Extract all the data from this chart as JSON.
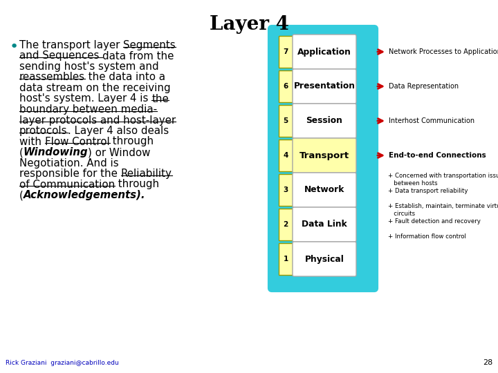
{
  "title": "Layer 4",
  "title_fontsize": 20,
  "title_fontweight": "bold",
  "bg_color": "#ffffff",
  "bullet_text_lines": [
    {
      "text": "The transport layer ",
      "style": "normal"
    },
    {
      "text": "Segments\nand Sequences ",
      "style": "underline"
    },
    {
      "text": "data from the\nsending host's system and\n",
      "style": "normal"
    },
    {
      "text": "reassembles",
      "style": "underline"
    },
    {
      "text": " the data into a\ndata stream on the receiving\nhost's system. Layer 4 is ",
      "style": "normal"
    },
    {
      "text": "the\nboundary between media-\nlayer protocols and host-layer\nprotocols",
      "style": "underline"
    },
    {
      "text": ". Layer 4 also deals\nwith ",
      "style": "normal"
    },
    {
      "text": "Flow Control",
      "style": "underline"
    },
    {
      "text": " through\n(",
      "style": "normal"
    },
    {
      "text": "Windowing",
      "style": "bold_italic"
    },
    {
      "text": ") or Window\nNegotiation. And is\nresponsible for the ",
      "style": "normal"
    },
    {
      "text": "Reliability\nof Communication",
      "style": "underline"
    },
    {
      "text": " through\n(",
      "style": "normal"
    },
    {
      "text": "Acknowledgements).",
      "style": "bold_italic"
    }
  ],
  "layers": [
    {
      "num": 7,
      "label": "Application",
      "highlight": false,
      "arrow_text": "Network Processes to Applications"
    },
    {
      "num": 6,
      "label": "Presentation",
      "highlight": false,
      "arrow_text": "Data Representation"
    },
    {
      "num": 5,
      "label": "Session",
      "highlight": false,
      "arrow_text": "Interhost Communication"
    },
    {
      "num": 4,
      "label": "Transport",
      "highlight": true,
      "arrow_text": "End-to-end Connections"
    },
    {
      "num": 3,
      "label": "Network",
      "highlight": false,
      "arrow_text": null
    },
    {
      "num": 2,
      "label": "Data Link",
      "highlight": false,
      "arrow_text": null
    },
    {
      "num": 1,
      "label": "Physical",
      "highlight": false,
      "arrow_text": null
    }
  ],
  "sub_bullets": [
    "+ Concerned with transportation issues\n   between hosts",
    "+ Data transport reliability",
    "+ Establish, maintain, terminate virtual\n   circuits",
    "+ Fault detection and recovery",
    "+ Information flow control"
  ],
  "footer_text": "Rick Graziani  graziani@cabrillo.edu",
  "footer_color": "#0000bb",
  "page_num": "28",
  "cyan_border": "#33ccdd",
  "yellow_fill": "#ffffaa",
  "white_fill": "#ffffff",
  "arrow_color": "#cc0000",
  "bullet_color": "#008888"
}
